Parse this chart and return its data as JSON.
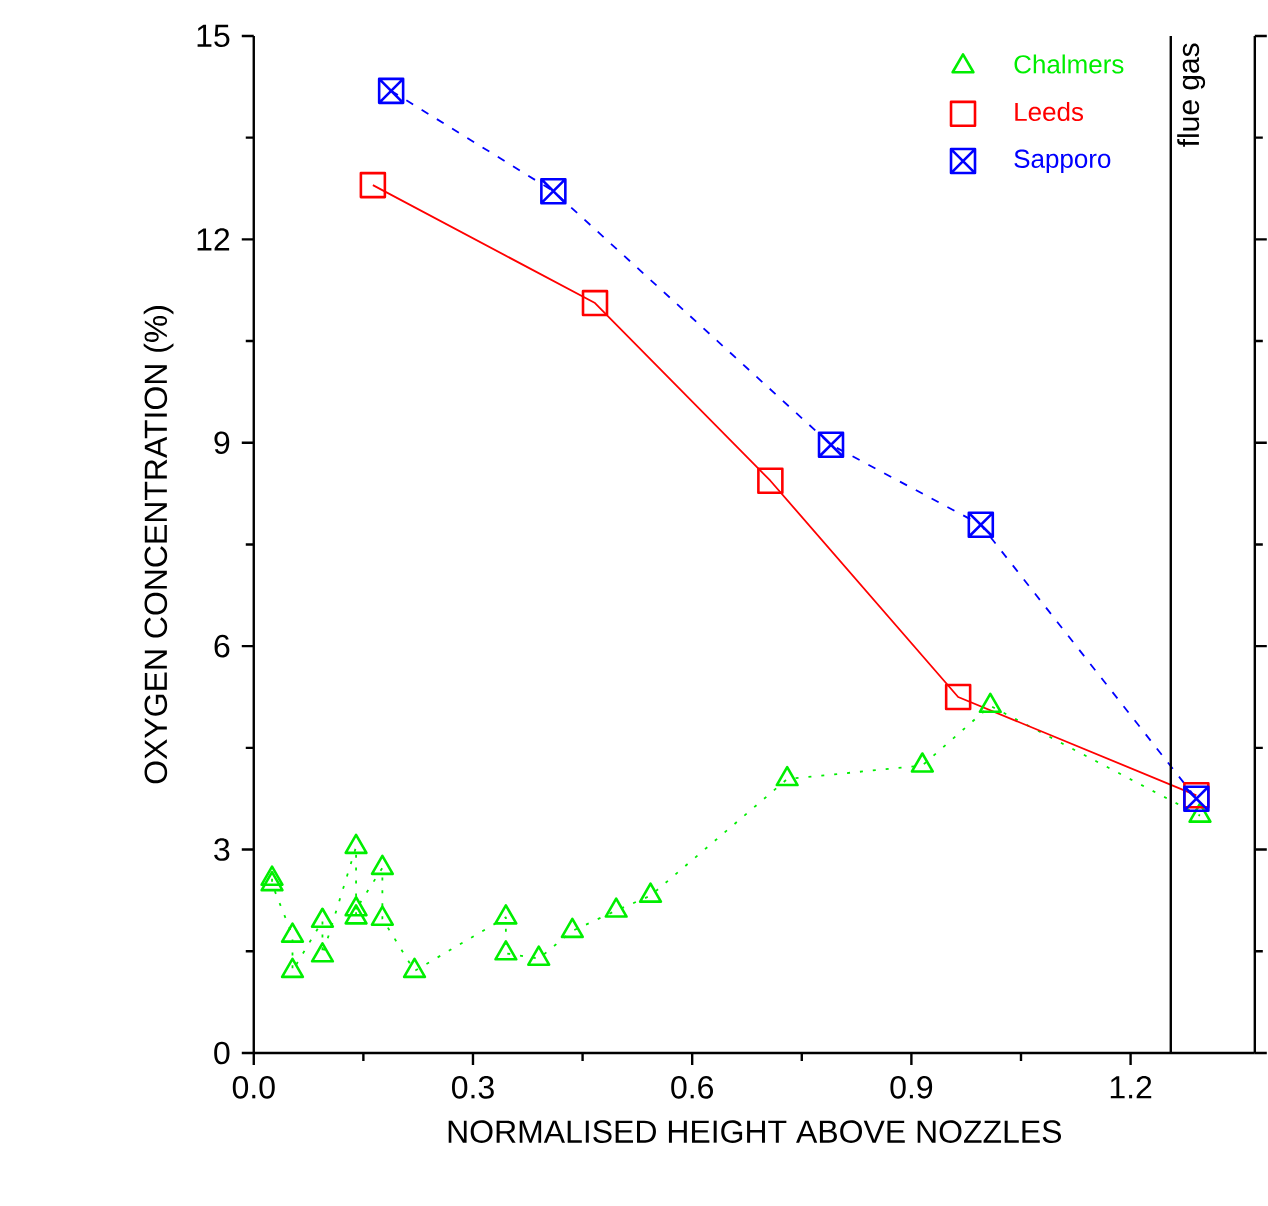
{
  "chart_data": {
    "type": "line",
    "xlabel": "NORMALISED HEIGHT ABOVE NOZZLES",
    "ylabel": "OXYGEN CONCENTRATION (%)",
    "xlim": [
      0,
      1.37
    ],
    "ylim": [
      0,
      15
    ],
    "xticks": [
      {
        "value": 0,
        "label": "0.0"
      },
      {
        "value": 0.3,
        "label": "0.3"
      },
      {
        "value": 0.6,
        "label": "0.6"
      },
      {
        "value": 0.9,
        "label": "0.9"
      },
      {
        "value": 1.2,
        "label": "1.2"
      }
    ],
    "yticks": [
      0,
      3,
      6,
      9,
      12,
      15
    ],
    "grid": false,
    "legend": "top right",
    "ref_lines": [
      {
        "axis": "x",
        "value": 1.255,
        "label": "flue gas",
        "color": "#000000",
        "line_style": "solid"
      }
    ],
    "series": [
      {
        "name": "Chalmers",
        "color": "#00ee00",
        "marker": "triangle",
        "line_style": "dotted",
        "x": [
          0.025,
          0.025,
          0.053,
          0.053,
          0.094,
          0.094,
          0.14,
          0.14,
          0.14,
          0.176,
          0.176,
          0.22,
          0.345,
          0.345,
          0.39,
          0.436,
          0.496,
          0.543,
          0.73,
          0.915,
          1.008,
          1.295
        ],
        "values": [
          2.57,
          2.49,
          1.73,
          1.21,
          1.95,
          1.44,
          3.04,
          2.0,
          2.12,
          2.73,
          1.98,
          1.21,
          2.0,
          1.47,
          1.39,
          1.8,
          2.1,
          2.32,
          4.04,
          4.24,
          5.12,
          3.5
        ]
      },
      {
        "name": "Leeds",
        "color": "#ff0000",
        "marker": "square",
        "line_style": "solid",
        "x": [
          0.163,
          0.467,
          0.707,
          0.964,
          1.29
        ],
        "values": [
          12.8,
          11.06,
          8.44,
          5.25,
          3.8
        ]
      },
      {
        "name": "Sapporo",
        "color": "#0000ff",
        "marker": "cross",
        "line_style": "dashed",
        "x": [
          0.188,
          0.41,
          0.79,
          0.995,
          1.29
        ],
        "values": [
          14.19,
          12.71,
          8.97,
          7.79,
          3.75
        ]
      }
    ]
  }
}
